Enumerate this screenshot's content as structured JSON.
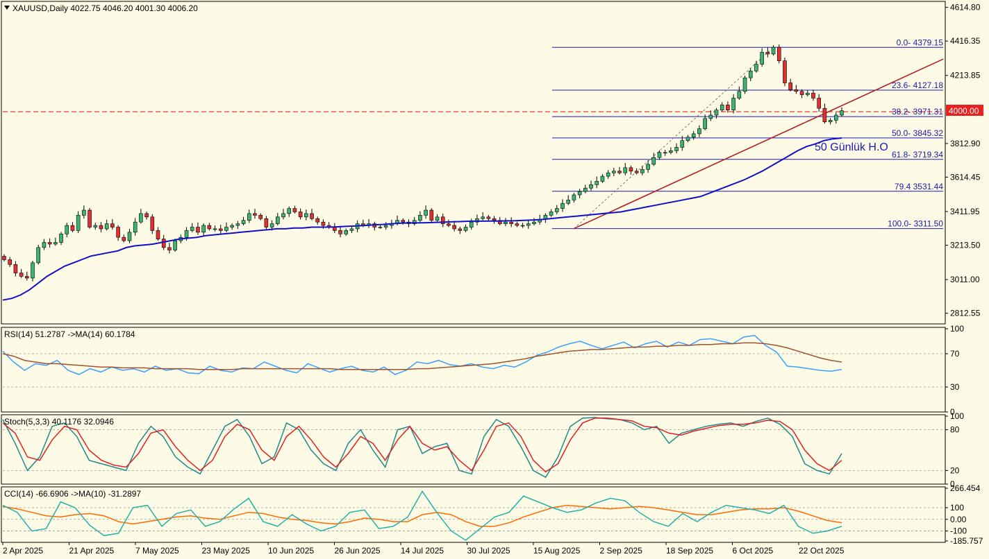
{
  "main": {
    "header": "XAUUSD,Daily  4022.75 4046.20 4001.30 4006.20",
    "annotation": "50 Günlük H.O",
    "price_axis": [
      "4614.80",
      "4416.35",
      "4213.85",
      "3812.90",
      "3614.45",
      "3411.95",
      "3213.50",
      "3011.00",
      "2812.55"
    ],
    "current_price": "4000.00",
    "fib_levels": [
      {
        "label": "0.0- 4379.15",
        "price": 4379.15
      },
      {
        "label": "23.6- 4127.18",
        "price": 4127.18
      },
      {
        "label": "38.2- 3971.31",
        "price": 3971.31
      },
      {
        "label": "50.0- 3845.32",
        "price": 3845.32
      },
      {
        "label": "61.8- 3719.34",
        "price": 3719.34
      },
      {
        "label": "79.4 3531.44",
        "price": 3531.44
      },
      {
        "label": "100.0- 3311.50",
        "price": 3311.5
      }
    ]
  },
  "rsi": {
    "header": "RSI(14) 51.2787  ->MA(14) 60.1784",
    "axis": [
      "100",
      "70",
      "30",
      "0"
    ]
  },
  "stoch": {
    "header": "Stoch(5,3,3) 40.1176 32.0946",
    "axis": [
      "100",
      "80",
      "20",
      "0"
    ]
  },
  "cci": {
    "header": "CCI(14) -66.6906  ->MA(10) -31.2897",
    "axis": [
      "266.454",
      "100",
      "0.00",
      "-100",
      "-185.757"
    ]
  },
  "dates": [
    "2 Apr 2025",
    "21 Apr 2025",
    "7 May 2025",
    "23 May 2025",
    "10 Jun 2025",
    "26 Jun 2025",
    "14 Jul 2025",
    "30 Jul 2025",
    "15 Aug 2025",
    "2 Sep 2025",
    "18 Sep 2025",
    "6 Oct 2025",
    "22 Oct 2025"
  ],
  "colors": {
    "bull": "#3cb371",
    "bear": "#e03030",
    "ma50": "#1010c8",
    "trend": "#b02020",
    "rsi": "#3aa0ff",
    "rsi_ma": "#a0522d",
    "stoch_k": "#1f8a8a",
    "stoch_d": "#e02020",
    "cci": "#20b2aa",
    "cci_ma": "#ff6a00",
    "price_tag": "#e82020"
  },
  "chart_data": {
    "type": "candlestick",
    "symbol": "XAUUSD",
    "timeframe": "Daily",
    "ylim": [
      2750,
      4650
    ],
    "ohlc_last": {
      "open": 4022.75,
      "high": 4046.2,
      "low": 4001.3,
      "close": 4006.2
    },
    "close": [
      3128,
      3100,
      3050,
      3030,
      3020,
      3110,
      3200,
      3230,
      3220,
      3230,
      3280,
      3330,
      3300,
      3390,
      3420,
      3320,
      3330,
      3310,
      3340,
      3320,
      3260,
      3240,
      3290,
      3350,
      3400,
      3380,
      3300,
      3250,
      3200,
      3185,
      3240,
      3260,
      3300,
      3320,
      3290,
      3330,
      3310,
      3310,
      3300,
      3320,
      3330,
      3340,
      3360,
      3400,
      3390,
      3370,
      3320,
      3340,
      3380,
      3400,
      3430,
      3410,
      3380,
      3400,
      3370,
      3350,
      3330,
      3320,
      3300,
      3280,
      3300,
      3310,
      3340,
      3330,
      3340,
      3320,
      3320,
      3330,
      3340,
      3360,
      3350,
      3340,
      3360,
      3390,
      3420,
      3360,
      3380,
      3340,
      3330,
      3310,
      3300,
      3320,
      3350,
      3370,
      3380,
      3370,
      3360,
      3340,
      3350,
      3340,
      3330,
      3330,
      3340,
      3350,
      3365,
      3390,
      3410,
      3430,
      3460,
      3480,
      3510,
      3530,
      3550,
      3570,
      3590,
      3620,
      3640,
      3650,
      3640,
      3670,
      3650,
      3640,
      3660,
      3690,
      3730,
      3760,
      3760,
      3770,
      3790,
      3830,
      3850,
      3870,
      3900,
      3960,
      3980,
      4010,
      4040,
      4010,
      4080,
      4120,
      4200,
      4240,
      4280,
      4350,
      4340,
      4380,
      4300,
      4170,
      4130,
      4120,
      4100,
      4110,
      4080,
      4020,
      3940,
      3950,
      3980,
      4006
    ],
    "ma50": [
      2890,
      2900,
      2920,
      2950,
      2990,
      3030,
      3060,
      3090,
      3110,
      3130,
      3150,
      3160,
      3170,
      3180,
      3200,
      3210,
      3215,
      3220,
      3230,
      3240,
      3250,
      3255,
      3260,
      3270,
      3275,
      3280,
      3285,
      3290,
      3295,
      3300,
      3305,
      3310,
      3310,
      3315,
      3315,
      3320,
      3320,
      3320,
      3322,
      3325,
      3327,
      3330,
      3333,
      3336,
      3340,
      3343,
      3345,
      3345,
      3346,
      3348,
      3350,
      3352,
      3353,
      3355,
      3355,
      3356,
      3356,
      3357,
      3358,
      3360,
      3362,
      3365,
      3370,
      3375,
      3380,
      3385,
      3390,
      3395,
      3400,
      3405,
      3410,
      3420,
      3430,
      3440,
      3450,
      3460,
      3470,
      3480,
      3490,
      3500,
      3520,
      3540,
      3560,
      3580,
      3600,
      3625,
      3650,
      3680,
      3710,
      3740,
      3770,
      3795,
      3810,
      3830,
      3840,
      3845
    ],
    "fib_range": [
      3311.5,
      4379.15
    ],
    "rsi": {
      "ylim": [
        0,
        100
      ],
      "levels": [
        70,
        30
      ],
      "rsi": [
        73,
        60,
        50,
        58,
        56,
        62,
        50,
        45,
        52,
        48,
        54,
        50,
        52,
        48,
        55,
        50,
        52,
        47,
        46,
        55,
        50,
        48,
        53,
        52,
        60,
        55,
        50,
        47,
        58,
        53,
        48,
        52,
        55,
        50,
        48,
        54,
        45,
        50,
        60,
        58,
        62,
        57,
        55,
        58,
        54,
        52,
        56,
        54,
        60,
        68,
        72,
        78,
        82,
        85,
        80,
        76,
        80,
        84,
        77,
        82,
        85,
        78,
        84,
        80,
        87,
        88,
        85,
        82,
        90,
        92,
        80,
        72,
        55,
        54,
        52,
        50,
        49,
        51
      ],
      "ma": [
        70,
        67,
        62,
        60,
        58,
        58,
        57,
        56,
        55,
        54,
        54,
        53,
        53,
        53,
        52,
        52,
        52,
        52,
        51,
        51,
        51,
        51,
        52,
        52,
        52,
        52,
        52,
        52,
        52,
        52,
        52,
        51,
        51,
        51,
        51,
        51,
        51,
        51,
        52,
        52,
        53,
        54,
        55,
        56,
        57,
        58,
        60,
        62,
        64,
        67,
        69,
        71,
        73,
        74,
        75,
        75,
        76,
        77,
        78,
        78,
        79,
        79,
        80,
        80,
        81,
        81,
        82,
        82,
        83,
        83,
        82,
        80,
        77,
        73,
        69,
        65,
        62,
        60
      ]
    },
    "stoch": {
      "ylim": [
        0,
        100
      ],
      "levels": [
        80,
        20
      ],
      "k": [
        95,
        60,
        20,
        40,
        85,
        90,
        70,
        35,
        30,
        25,
        20,
        60,
        85,
        70,
        40,
        25,
        15,
        50,
        85,
        95,
        70,
        30,
        40,
        90,
        80,
        50,
        30,
        20,
        60,
        80,
        50,
        25,
        80,
        85,
        45,
        55,
        60,
        20,
        15,
        70,
        95,
        85,
        55,
        20,
        10,
        40,
        85,
        97,
        98,
        96,
        95,
        90,
        80,
        85,
        60,
        75,
        80,
        85,
        88,
        90,
        85,
        92,
        97,
        88,
        70,
        30,
        20,
        15,
        45
      ],
      "d": [
        90,
        75,
        40,
        35,
        65,
        85,
        80,
        50,
        35,
        28,
        25,
        45,
        75,
        80,
        55,
        35,
        20,
        35,
        70,
        88,
        80,
        50,
        35,
        70,
        85,
        65,
        40,
        25,
        45,
        70,
        60,
        35,
        65,
        85,
        60,
        50,
        55,
        35,
        20,
        50,
        85,
        90,
        70,
        35,
        18,
        30,
        65,
        90,
        97,
        97,
        95,
        93,
        85,
        83,
        75,
        72,
        78,
        82,
        86,
        88,
        88,
        90,
        94,
        92,
        80,
        50,
        30,
        20,
        35
      ]
    },
    "cci": {
      "ylim": [
        -185.757,
        266.454
      ],
      "levels": [
        100,
        0,
        -100
      ],
      "cci": [
        120,
        60,
        -100,
        -80,
        150,
        100,
        -50,
        -140,
        -120,
        100,
        120,
        -60,
        50,
        80,
        -60,
        -20,
        90,
        180,
        -20,
        -60,
        40,
        -40,
        -100,
        -60,
        60,
        80,
        -80,
        -60,
        20,
        240,
        60,
        -100,
        -180,
        -80,
        20,
        60,
        200,
        150,
        100,
        60,
        80,
        140,
        180,
        160,
        60,
        -20,
        -60,
        50,
        -20,
        60,
        120,
        100,
        80,
        50,
        120,
        -60,
        -120,
        -100,
        -60
      ],
      "ma": [
        110,
        90,
        60,
        30,
        20,
        40,
        50,
        30,
        -20,
        -40,
        -20,
        0,
        20,
        30,
        10,
        0,
        30,
        60,
        50,
        20,
        0,
        -10,
        -30,
        -40,
        -20,
        10,
        0,
        -20,
        -20,
        40,
        60,
        40,
        -20,
        -60,
        -60,
        -30,
        20,
        60,
        100,
        120,
        110,
        100,
        90,
        100,
        110,
        100,
        80,
        60,
        40,
        40,
        60,
        80,
        90,
        90,
        100,
        70,
        30,
        -10,
        -30
      ]
    }
  }
}
